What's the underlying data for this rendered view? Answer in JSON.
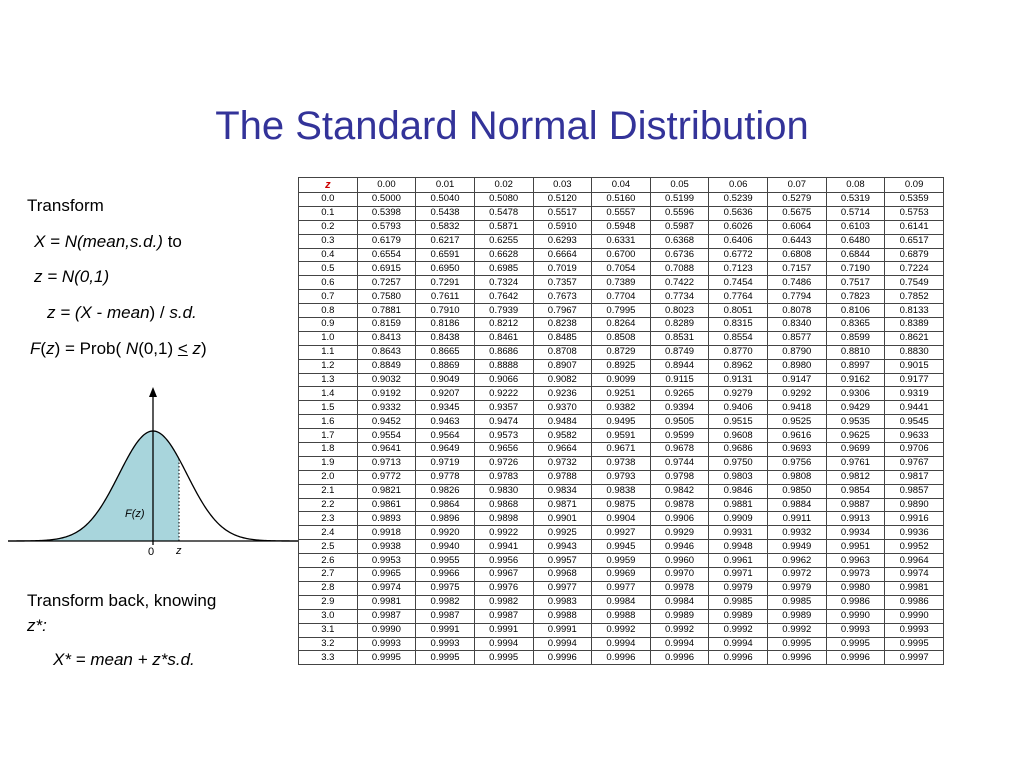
{
  "title": "The Standard Normal Distribution",
  "left_panel": {
    "transform": "Transform",
    "x_eq": "X = N(mean,s.d.)",
    "to": " to",
    "z_eq": "z = N(0,1)",
    "z_formula": {
      "a": "z = (",
      "b": "X",
      "c": " - ",
      "d": "mean",
      "e": ") / ",
      "f": "s.d."
    },
    "fz_formula": {
      "a": "F",
      "b": "(",
      "c": "z",
      "d": ") = Prob( ",
      "e": "N",
      "f": "(0,1) ",
      "g": "<",
      "h": " ",
      "i": "z",
      "j": ")"
    },
    "transform_back": "Transform back, knowing",
    "z_star": "z*:",
    "x_star_eq": "X* = mean + z*s.d."
  },
  "curve": {
    "area_label": "F(z)",
    "zero_label": "0",
    "z_label": "z",
    "fill_color": "#a8d5dc"
  },
  "table": {
    "corner": "z",
    "columns": [
      "0.00",
      "0.01",
      "0.02",
      "0.03",
      "0.04",
      "0.05",
      "0.06",
      "0.07",
      "0.08",
      "0.09"
    ],
    "rows": [
      {
        "z": "0.0",
        "v": [
          "0.5000",
          "0.5040",
          "0.5080",
          "0.5120",
          "0.5160",
          "0.5199",
          "0.5239",
          "0.5279",
          "0.5319",
          "0.5359"
        ]
      },
      {
        "z": "0.1",
        "v": [
          "0.5398",
          "0.5438",
          "0.5478",
          "0.5517",
          "0.5557",
          "0.5596",
          "0.5636",
          "0.5675",
          "0.5714",
          "0.5753"
        ]
      },
      {
        "z": "0.2",
        "v": [
          "0.5793",
          "0.5832",
          "0.5871",
          "0.5910",
          "0.5948",
          "0.5987",
          "0.6026",
          "0.6064",
          "0.6103",
          "0.6141"
        ]
      },
      {
        "z": "0.3",
        "v": [
          "0.6179",
          "0.6217",
          "0.6255",
          "0.6293",
          "0.6331",
          "0.6368",
          "0.6406",
          "0.6443",
          "0.6480",
          "0.6517"
        ]
      },
      {
        "z": "0.4",
        "v": [
          "0.6554",
          "0.6591",
          "0.6628",
          "0.6664",
          "0.6700",
          "0.6736",
          "0.6772",
          "0.6808",
          "0.6844",
          "0.6879"
        ]
      },
      {
        "z": "0.5",
        "v": [
          "0.6915",
          "0.6950",
          "0.6985",
          "0.7019",
          "0.7054",
          "0.7088",
          "0.7123",
          "0.7157",
          "0.7190",
          "0.7224"
        ]
      },
      {
        "z": "0.6",
        "v": [
          "0.7257",
          "0.7291",
          "0.7324",
          "0.7357",
          "0.7389",
          "0.7422",
          "0.7454",
          "0.7486",
          "0.7517",
          "0.7549"
        ]
      },
      {
        "z": "0.7",
        "v": [
          "0.7580",
          "0.7611",
          "0.7642",
          "0.7673",
          "0.7704",
          "0.7734",
          "0.7764",
          "0.7794",
          "0.7823",
          "0.7852"
        ]
      },
      {
        "z": "0.8",
        "v": [
          "0.7881",
          "0.7910",
          "0.7939",
          "0.7967",
          "0.7995",
          "0.8023",
          "0.8051",
          "0.8078",
          "0.8106",
          "0.8133"
        ]
      },
      {
        "z": "0.9",
        "v": [
          "0.8159",
          "0.8186",
          "0.8212",
          "0.8238",
          "0.8264",
          "0.8289",
          "0.8315",
          "0.8340",
          "0.8365",
          "0.8389"
        ]
      },
      {
        "z": "1.0",
        "v": [
          "0.8413",
          "0.8438",
          "0.8461",
          "0.8485",
          "0.8508",
          "0.8531",
          "0.8554",
          "0.8577",
          "0.8599",
          "0.8621"
        ]
      },
      {
        "z": "1.1",
        "v": [
          "0.8643",
          "0.8665",
          "0.8686",
          "0.8708",
          "0.8729",
          "0.8749",
          "0.8770",
          "0.8790",
          "0.8810",
          "0.8830"
        ]
      },
      {
        "z": "1.2",
        "v": [
          "0.8849",
          "0.8869",
          "0.8888",
          "0.8907",
          "0.8925",
          "0.8944",
          "0.8962",
          "0.8980",
          "0.8997",
          "0.9015"
        ]
      },
      {
        "z": "1.3",
        "v": [
          "0.9032",
          "0.9049",
          "0.9066",
          "0.9082",
          "0.9099",
          "0.9115",
          "0.9131",
          "0.9147",
          "0.9162",
          "0.9177"
        ]
      },
      {
        "z": "1.4",
        "v": [
          "0.9192",
          "0.9207",
          "0.9222",
          "0.9236",
          "0.9251",
          "0.9265",
          "0.9279",
          "0.9292",
          "0.9306",
          "0.9319"
        ]
      },
      {
        "z": "1.5",
        "v": [
          "0.9332",
          "0.9345",
          "0.9357",
          "0.9370",
          "0.9382",
          "0.9394",
          "0.9406",
          "0.9418",
          "0.9429",
          "0.9441"
        ]
      },
      {
        "z": "1.6",
        "v": [
          "0.9452",
          "0.9463",
          "0.9474",
          "0.9484",
          "0.9495",
          "0.9505",
          "0.9515",
          "0.9525",
          "0.9535",
          "0.9545"
        ]
      },
      {
        "z": "1.7",
        "v": [
          "0.9554",
          "0.9564",
          "0.9573",
          "0.9582",
          "0.9591",
          "0.9599",
          "0.9608",
          "0.9616",
          "0.9625",
          "0.9633"
        ]
      },
      {
        "z": "1.8",
        "v": [
          "0.9641",
          "0.9649",
          "0.9656",
          "0.9664",
          "0.9671",
          "0.9678",
          "0.9686",
          "0.9693",
          "0.9699",
          "0.9706"
        ]
      },
      {
        "z": "1.9",
        "v": [
          "0.9713",
          "0.9719",
          "0.9726",
          "0.9732",
          "0.9738",
          "0.9744",
          "0.9750",
          "0.9756",
          "0.9761",
          "0.9767"
        ]
      },
      {
        "z": "2.0",
        "v": [
          "0.9772",
          "0.9778",
          "0.9783",
          "0.9788",
          "0.9793",
          "0.9798",
          "0.9803",
          "0.9808",
          "0.9812",
          "0.9817"
        ]
      },
      {
        "z": "2.1",
        "v": [
          "0.9821",
          "0.9826",
          "0.9830",
          "0.9834",
          "0.9838",
          "0.9842",
          "0.9846",
          "0.9850",
          "0.9854",
          "0.9857"
        ]
      },
      {
        "z": "2.2",
        "v": [
          "0.9861",
          "0.9864",
          "0.9868",
          "0.9871",
          "0.9875",
          "0.9878",
          "0.9881",
          "0.9884",
          "0.9887",
          "0.9890"
        ]
      },
      {
        "z": "2.3",
        "v": [
          "0.9893",
          "0.9896",
          "0.9898",
          "0.9901",
          "0.9904",
          "0.9906",
          "0.9909",
          "0.9911",
          "0.9913",
          "0.9916"
        ]
      },
      {
        "z": "2.4",
        "v": [
          "0.9918",
          "0.9920",
          "0.9922",
          "0.9925",
          "0.9927",
          "0.9929",
          "0.9931",
          "0.9932",
          "0.9934",
          "0.9936"
        ]
      },
      {
        "z": "2.5",
        "v": [
          "0.9938",
          "0.9940",
          "0.9941",
          "0.9943",
          "0.9945",
          "0.9946",
          "0.9948",
          "0.9949",
          "0.9951",
          "0.9952"
        ]
      },
      {
        "z": "2.6",
        "v": [
          "0.9953",
          "0.9955",
          "0.9956",
          "0.9957",
          "0.9959",
          "0.9960",
          "0.9961",
          "0.9962",
          "0.9963",
          "0.9964"
        ]
      },
      {
        "z": "2.7",
        "v": [
          "0.9965",
          "0.9966",
          "0.9967",
          "0.9968",
          "0.9969",
          "0.9970",
          "0.9971",
          "0.9972",
          "0.9973",
          "0.9974"
        ]
      },
      {
        "z": "2.8",
        "v": [
          "0.9974",
          "0.9975",
          "0.9976",
          "0.9977",
          "0.9977",
          "0.9978",
          "0.9979",
          "0.9979",
          "0.9980",
          "0.9981"
        ]
      },
      {
        "z": "2.9",
        "v": [
          "0.9981",
          "0.9982",
          "0.9982",
          "0.9983",
          "0.9984",
          "0.9984",
          "0.9985",
          "0.9985",
          "0.9986",
          "0.9986"
        ]
      },
      {
        "z": "3.0",
        "v": [
          "0.9987",
          "0.9987",
          "0.9987",
          "0.9988",
          "0.9988",
          "0.9989",
          "0.9989",
          "0.9989",
          "0.9990",
          "0.9990"
        ]
      },
      {
        "z": "3.1",
        "v": [
          "0.9990",
          "0.9991",
          "0.9991",
          "0.9991",
          "0.9992",
          "0.9992",
          "0.9992",
          "0.9992",
          "0.9993",
          "0.9993"
        ]
      },
      {
        "z": "3.2",
        "v": [
          "0.9993",
          "0.9993",
          "0.9994",
          "0.9994",
          "0.9994",
          "0.9994",
          "0.9994",
          "0.9995",
          "0.9995",
          "0.9995"
        ]
      },
      {
        "z": "3.3",
        "v": [
          "0.9995",
          "0.9995",
          "0.9995",
          "0.9996",
          "0.9996",
          "0.9996",
          "0.9996",
          "0.9996",
          "0.9996",
          "0.9997"
        ]
      }
    ]
  }
}
